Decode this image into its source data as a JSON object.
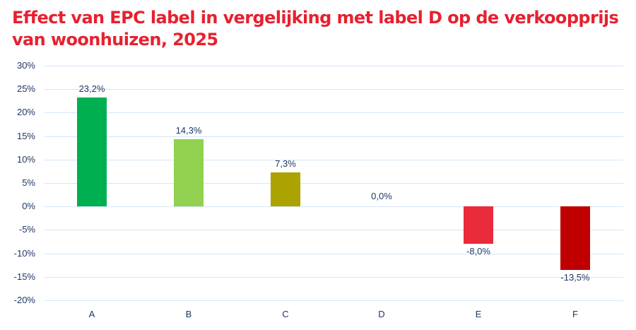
{
  "chart_data": {
    "type": "bar",
    "title": "Effect van EPC label in vergelijking met label D op de verkoopprijs van woonhuizen, 2025",
    "xlabel": "",
    "ylabel": "",
    "categories": [
      "A",
      "B",
      "C",
      "D",
      "E",
      "F"
    ],
    "values": [
      23.2,
      14.3,
      7.3,
      0.0,
      -8.0,
      -13.5
    ],
    "data_labels": [
      "23,2%",
      "14,3%",
      "7,3%",
      "0,0%",
      "-8,0%",
      "-13,5%"
    ],
    "bar_colors": [
      "#00b050",
      "#92d050",
      "#aca200",
      "#ffffff",
      "#ea2b3b",
      "#c00000"
    ],
    "ylim": [
      -20,
      30
    ],
    "yticks": [
      "30%",
      "25%",
      "20%",
      "15%",
      "10%",
      "5%",
      "0%",
      "-5%",
      "-10%",
      "-15%",
      "-20%"
    ],
    "grid": true,
    "legend": null
  },
  "title": "Effect van EPC label in vergelijking met label D op de verkoopprijs van woonhuizen, 2025",
  "colors": {
    "title": "#e8202f",
    "text": "#1f3864",
    "grid": "#d6e6f5"
  }
}
